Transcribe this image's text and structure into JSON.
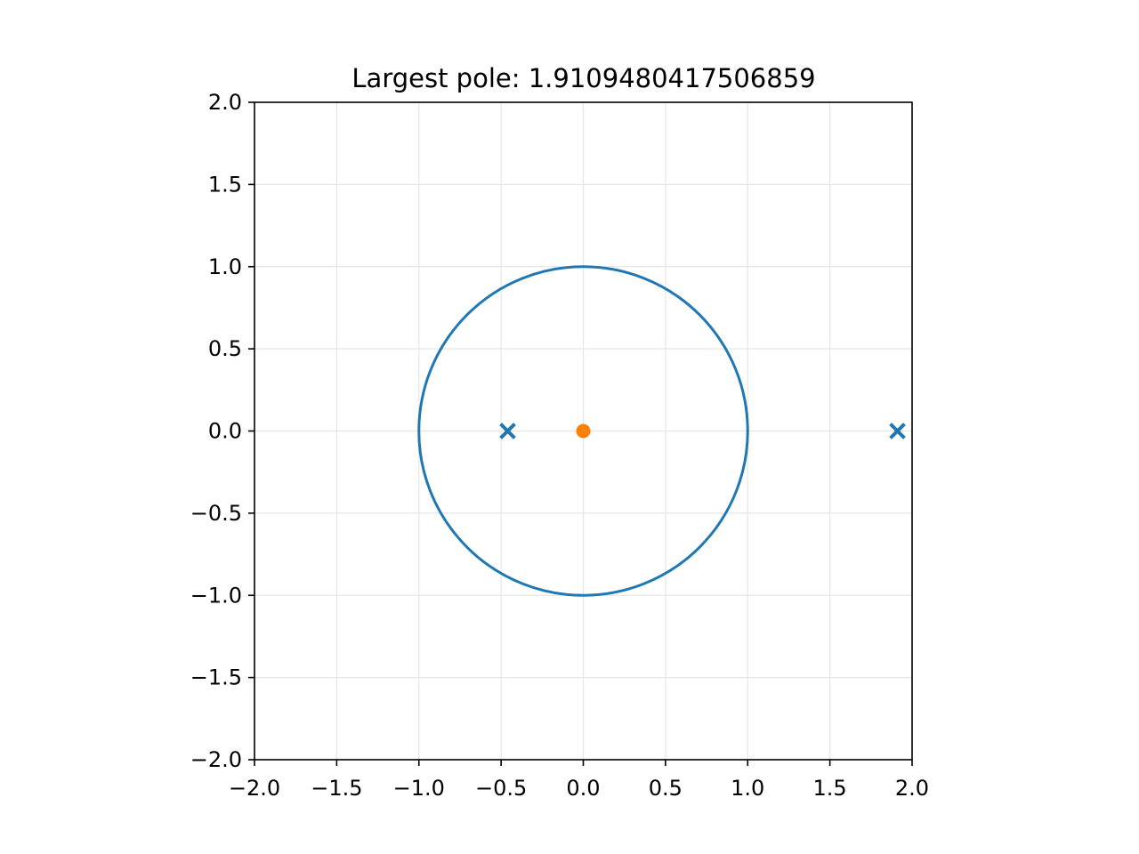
{
  "chart_data": {
    "type": "scatter",
    "title": "Largest pole: 1.9109480417506859",
    "xlabel": "",
    "ylabel": "",
    "xlim": [
      -2.0,
      2.0
    ],
    "ylim": [
      -2.0,
      2.0
    ],
    "aspect": "equal",
    "grid": true,
    "legend": "none",
    "x_ticks": [
      -2.0,
      -1.5,
      -1.0,
      -0.5,
      0.0,
      0.5,
      1.0,
      1.5,
      2.0
    ],
    "x_tick_labels": [
      "−2.0",
      "−1.5",
      "−1.0",
      "−0.5",
      "0.0",
      "0.5",
      "1.0",
      "1.5",
      "2.0"
    ],
    "y_ticks": [
      2.0,
      1.5,
      1.0,
      0.5,
      0.0,
      -0.5,
      -1.0,
      -1.5,
      -2.0
    ],
    "y_tick_labels": [
      "2.0",
      "1.5",
      "1.0",
      "0.5",
      "0.0",
      "−0.5",
      "−1.0",
      "−1.5",
      "−2.0"
    ],
    "unit_circle": {
      "center": [
        0.0,
        0.0
      ],
      "radius": 1.0,
      "color": "#1f77b4"
    },
    "series": [
      {
        "marker": "x",
        "color": "#1f77b4",
        "points": [
          {
            "x": -0.46,
            "y": 0.0
          },
          {
            "x": 1.9109480417506859,
            "y": 0.0
          }
        ]
      },
      {
        "marker": "o",
        "color": "#ff7f0e",
        "points": [
          {
            "x": 0.0,
            "y": 0.0
          }
        ]
      }
    ]
  }
}
